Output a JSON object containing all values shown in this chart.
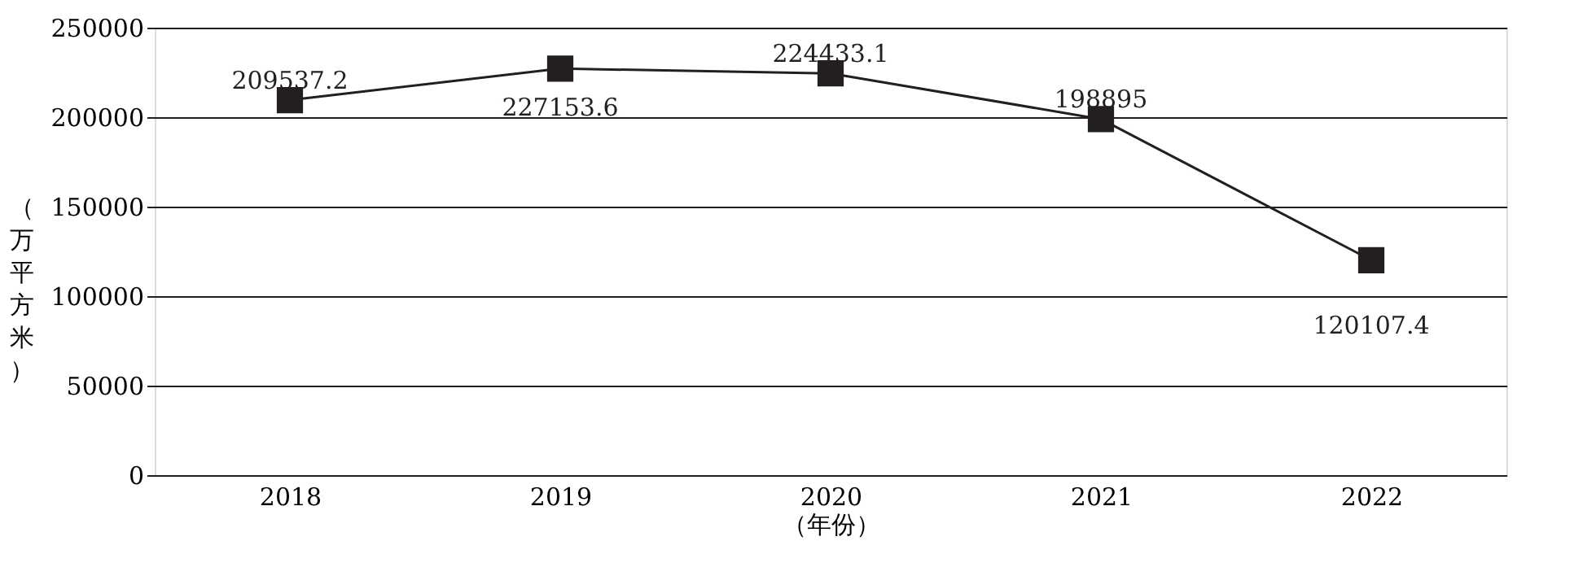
{
  "chart_data": {
    "type": "line",
    "categories": [
      "2018",
      "2019",
      "2020",
      "2021",
      "2022"
    ],
    "series": [
      {
        "color": "#231f20",
        "values": [
          209537.2,
          227153.6,
          224433.1,
          198895,
          120107.4
        ],
        "value_labels": [
          "209537.2",
          "227153.6",
          "224433.1",
          "198895",
          "120107.4"
        ]
      }
    ],
    "xlabel": "（年份）",
    "ylabel": "（万平方米）",
    "ylim": [
      0,
      250000
    ],
    "yticks": [
      0,
      50000,
      100000,
      150000,
      200000,
      250000
    ],
    "grid": "y",
    "marker": "square",
    "line_style": "solid"
  }
}
